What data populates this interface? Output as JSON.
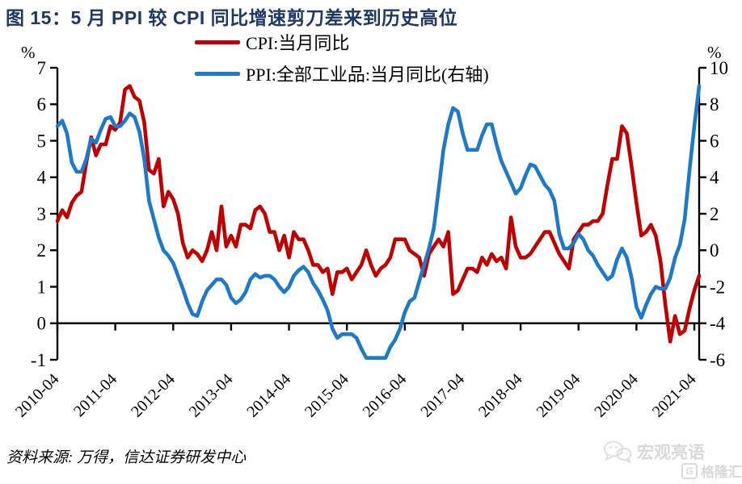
{
  "header": {
    "title": "图 15：5 月 PPI 较 CPI 同比增速剪刀差来到历史高位"
  },
  "legend": {
    "items": [
      {
        "label": "CPI:当月同比",
        "color": "#C00000"
      },
      {
        "label": "PPI:全部工业品:当月同比(右轴)",
        "color": "#1E7AC8"
      }
    ]
  },
  "axes": {
    "left_unit": "%",
    "right_unit": "%"
  },
  "footer": {
    "source": "资料来源: 万得，信达证券研发中心"
  },
  "watermark": {
    "wechat_name": "宏观亮语",
    "gelonghui_name": "格隆汇",
    "gelonghui_logo_letter": "G"
  },
  "chart_data": {
    "type": "line",
    "title": "图 15：5 月 PPI 较 CPI 同比增速剪刀差来到历史高位",
    "x_frequency": "monthly",
    "x_range": [
      "2010-04",
      "2021-05"
    ],
    "x_tick_labels": [
      "2010-04",
      "2011-04",
      "2012-04",
      "2013-04",
      "2014-04",
      "2015-04",
      "2016-04",
      "2017-04",
      "2018-04",
      "2019-04",
      "2020-04",
      "2021-04"
    ],
    "x_tick_month_step": 12,
    "left_axis": {
      "unit": "%",
      "range": [
        -1,
        7
      ],
      "ticks": [
        7,
        6,
        5,
        4,
        3,
        2,
        1,
        0,
        -1
      ]
    },
    "right_axis": {
      "unit": "%",
      "range": [
        -6,
        10
      ],
      "ticks": [
        10,
        8,
        6,
        4,
        2,
        0,
        -2,
        -4,
        -6
      ]
    },
    "zero_baseline_left_value": 0,
    "grid": false,
    "legend_position": "top-center",
    "series": [
      {
        "name": "CPI:当月同比",
        "axis": "left",
        "color": "#C00000",
        "values": [
          2.8,
          3.1,
          2.9,
          3.3,
          3.5,
          3.6,
          4.4,
          5.1,
          4.6,
          4.9,
          4.9,
          5.4,
          5.3,
          5.5,
          6.4,
          6.5,
          6.2,
          6.1,
          5.5,
          4.2,
          4.1,
          4.5,
          3.2,
          3.6,
          3.4,
          3.0,
          2.2,
          1.8,
          2.0,
          1.9,
          1.7,
          2.0,
          2.5,
          2.0,
          3.2,
          2.1,
          2.4,
          2.1,
          2.7,
          2.7,
          2.6,
          3.1,
          3.2,
          3.0,
          2.5,
          2.5,
          2.0,
          2.4,
          1.8,
          2.5,
          2.3,
          2.3,
          2.0,
          1.6,
          1.6,
          1.4,
          1.5,
          0.8,
          1.4,
          1.4,
          1.5,
          1.2,
          1.4,
          1.6,
          2.0,
          1.6,
          1.3,
          1.5,
          1.6,
          1.8,
          2.3,
          2.3,
          2.3,
          2.0,
          1.9,
          1.8,
          1.3,
          1.9,
          2.1,
          2.3,
          2.1,
          2.5,
          0.8,
          0.9,
          1.2,
          1.5,
          1.5,
          1.4,
          1.8,
          1.6,
          1.9,
          1.7,
          1.8,
          1.5,
          2.9,
          2.1,
          1.8,
          1.8,
          1.9,
          2.1,
          2.3,
          2.5,
          2.5,
          2.2,
          1.9,
          1.7,
          1.5,
          2.3,
          2.5,
          2.7,
          2.7,
          2.8,
          2.8,
          3.0,
          3.8,
          4.5,
          4.5,
          5.4,
          5.2,
          4.3,
          3.3,
          2.4,
          2.5,
          2.7,
          2.4,
          1.7,
          0.5,
          -0.5,
          0.2,
          -0.3,
          -0.2,
          0.4,
          0.9,
          1.3
        ]
      },
      {
        "name": "PPI:全部工业品:当月同比(右轴)",
        "axis": "right",
        "color": "#1E7AC8",
        "values": [
          6.8,
          7.1,
          6.4,
          4.8,
          4.3,
          4.3,
          5.0,
          6.1,
          5.9,
          6.6,
          7.2,
          7.3,
          6.8,
          6.8,
          7.1,
          7.5,
          7.3,
          6.5,
          5.0,
          2.7,
          1.7,
          0.7,
          0.0,
          -0.3,
          -0.7,
          -1.4,
          -2.1,
          -2.9,
          -3.5,
          -3.6,
          -2.8,
          -2.2,
          -1.9,
          -1.6,
          -1.6,
          -1.9,
          -2.6,
          -2.9,
          -2.7,
          -2.3,
          -1.6,
          -1.3,
          -1.5,
          -1.4,
          -1.4,
          -1.6,
          -2.0,
          -2.3,
          -2.0,
          -1.4,
          -1.1,
          -0.9,
          -1.2,
          -1.8,
          -2.2,
          -2.7,
          -3.3,
          -4.3,
          -4.8,
          -4.6,
          -4.6,
          -4.6,
          -4.8,
          -5.4,
          -5.9,
          -5.9,
          -5.9,
          -5.9,
          -5.9,
          -5.3,
          -4.9,
          -4.3,
          -3.4,
          -2.8,
          -2.6,
          -1.7,
          -0.8,
          0.1,
          1.2,
          3.3,
          5.5,
          6.9,
          7.8,
          7.6,
          6.4,
          5.5,
          5.5,
          5.5,
          6.3,
          6.9,
          6.9,
          5.8,
          4.9,
          4.3,
          3.7,
          3.1,
          3.4,
          4.1,
          4.7,
          4.6,
          4.1,
          3.6,
          3.3,
          2.7,
          0.9,
          0.1,
          0.1,
          0.4,
          0.9,
          0.6,
          0.0,
          -0.3,
          -0.8,
          -1.2,
          -1.6,
          -1.4,
          -0.5,
          0.1,
          -0.4,
          -1.5,
          -3.1,
          -3.7,
          -3.0,
          -2.4,
          -2.0,
          -2.1,
          -2.1,
          -1.5,
          -0.4,
          0.3,
          1.7,
          4.4,
          6.8,
          9.0
        ]
      }
    ]
  }
}
